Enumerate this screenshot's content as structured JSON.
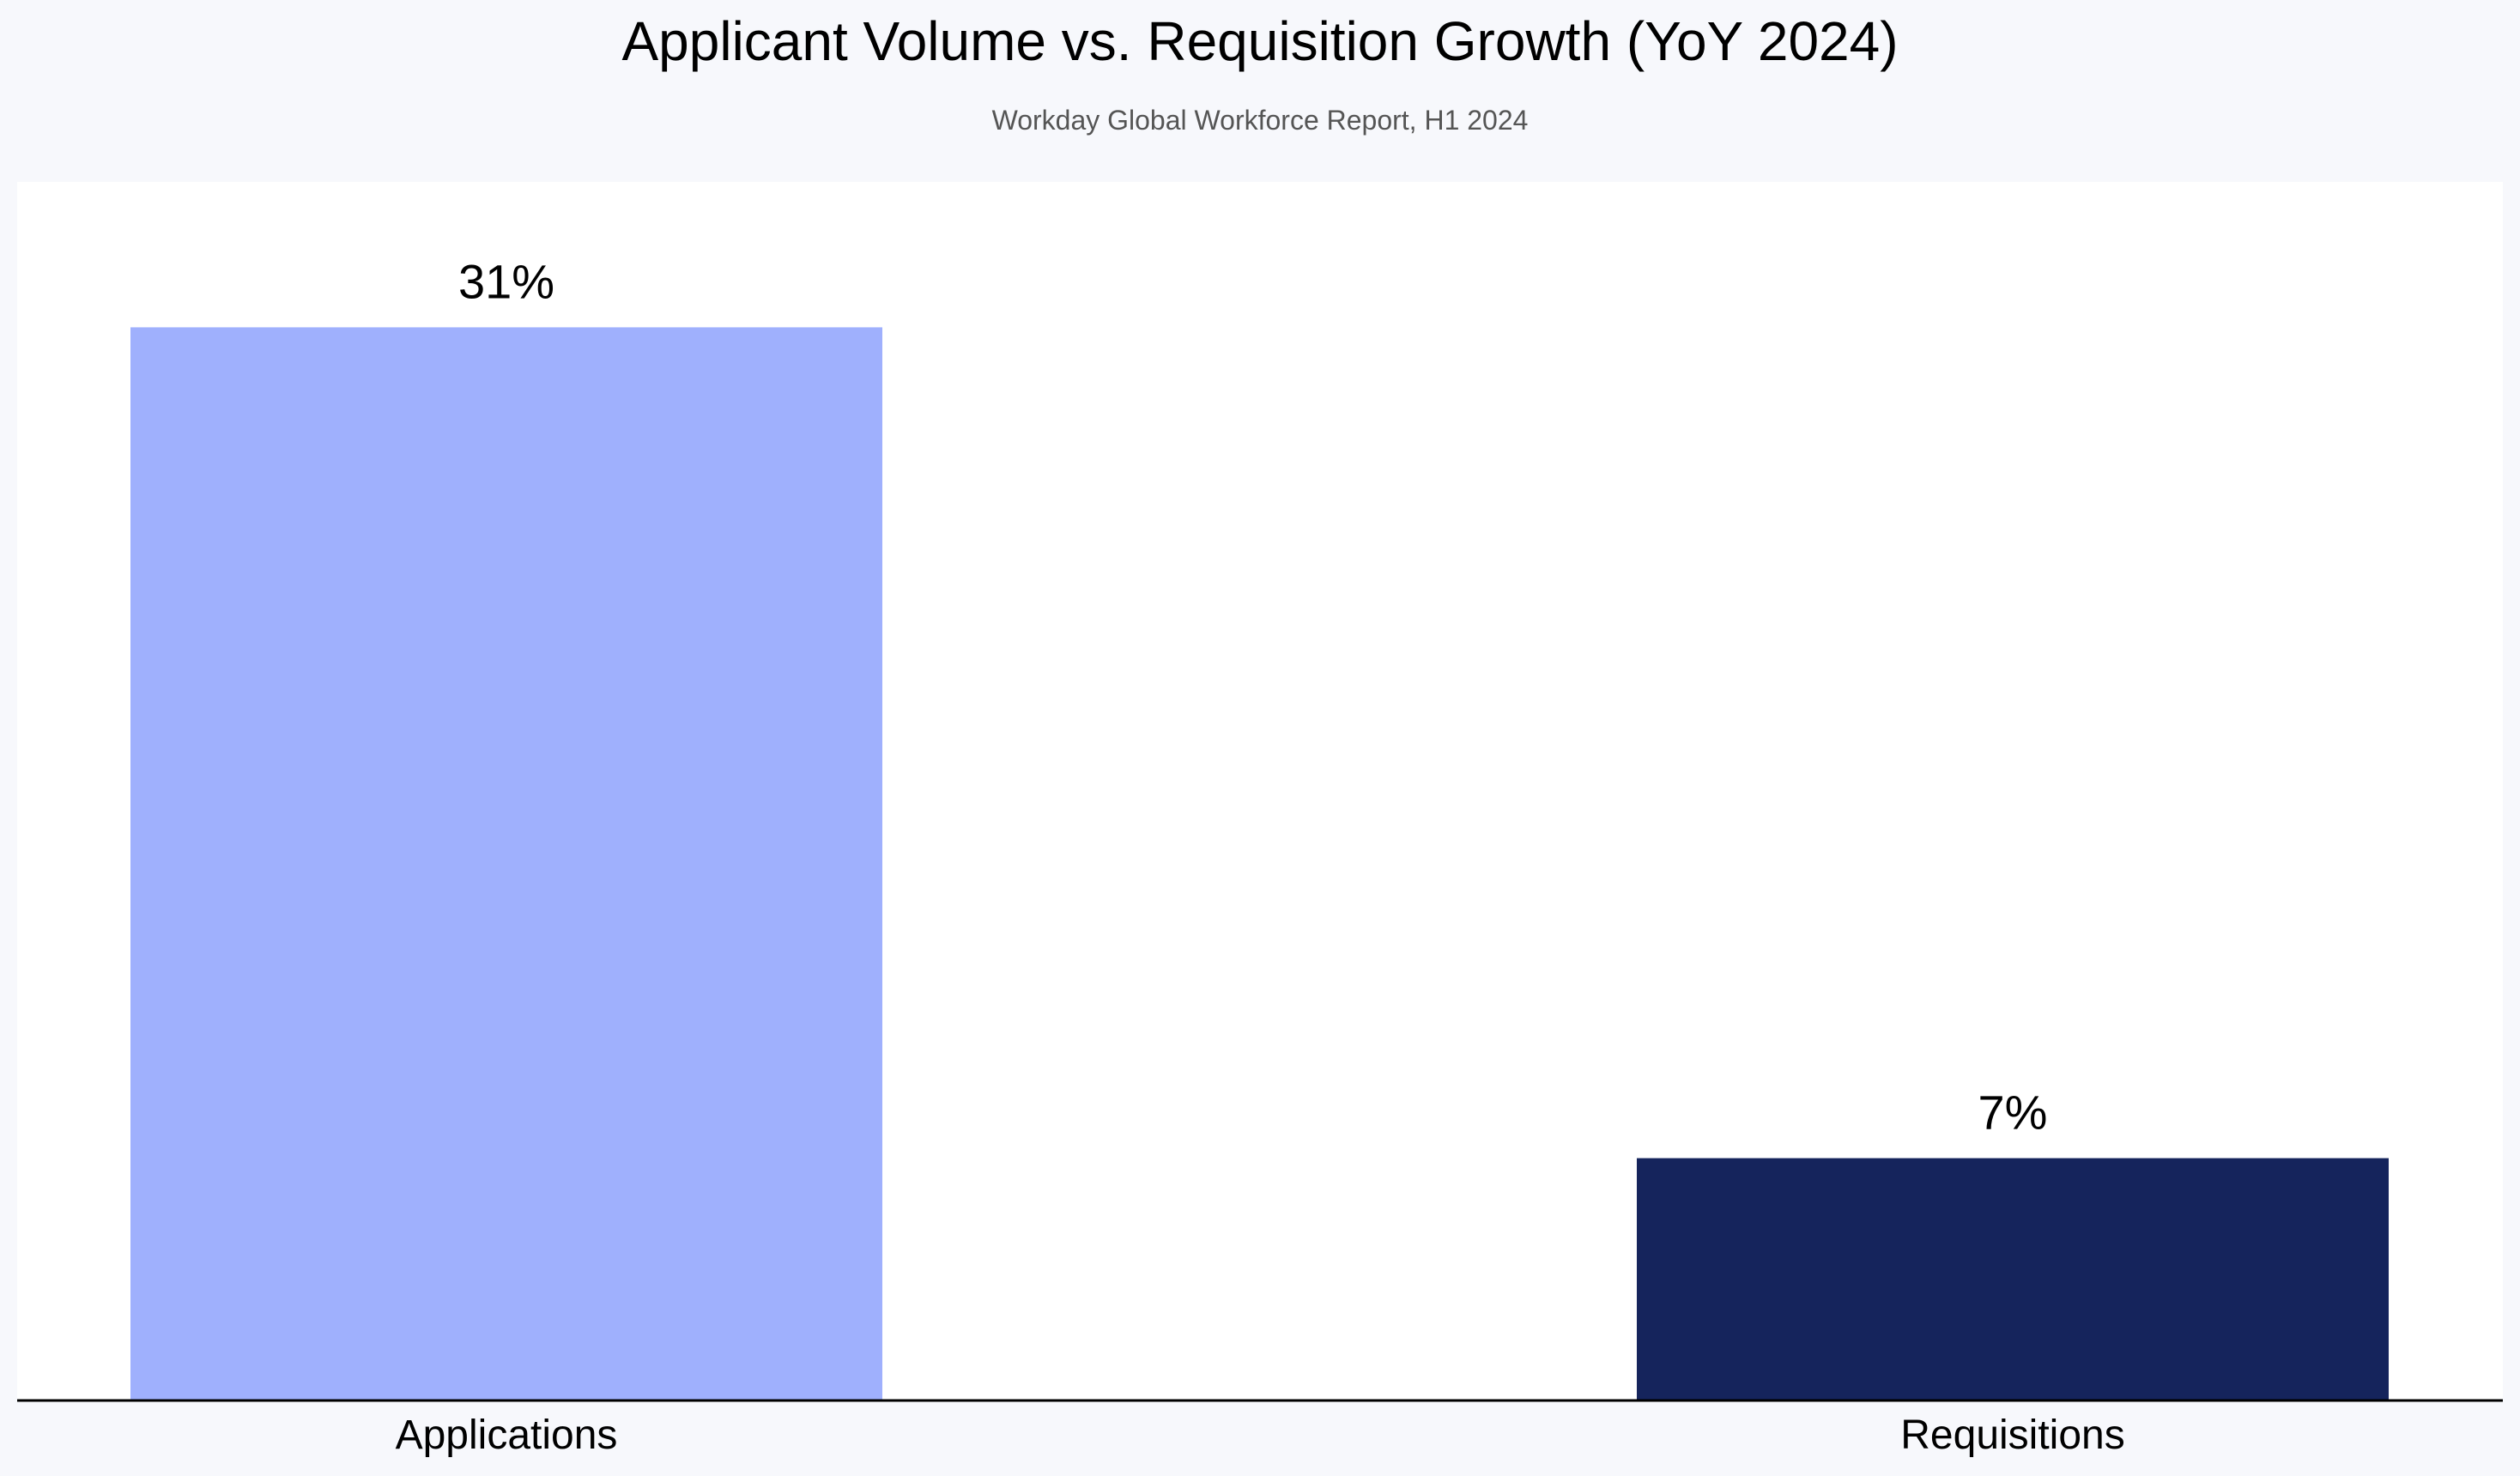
{
  "chart_data": {
    "type": "bar",
    "title": "Applicant Volume vs. Requisition Growth (YoY 2024)",
    "subtitle": "Workday Global Workforce Report, H1 2024",
    "categories": [
      "Applications",
      "Requisitions"
    ],
    "values": [
      31,
      7
    ],
    "value_labels": [
      "31%",
      "7%"
    ],
    "colors": [
      "#9fb0fd",
      "#15245c"
    ],
    "xlabel": "",
    "ylabel": "",
    "ylim": [
      0,
      35.2
    ],
    "grid": false,
    "legend": "none",
    "background": "#f7f8fc",
    "plot_background": "#ffffff"
  }
}
